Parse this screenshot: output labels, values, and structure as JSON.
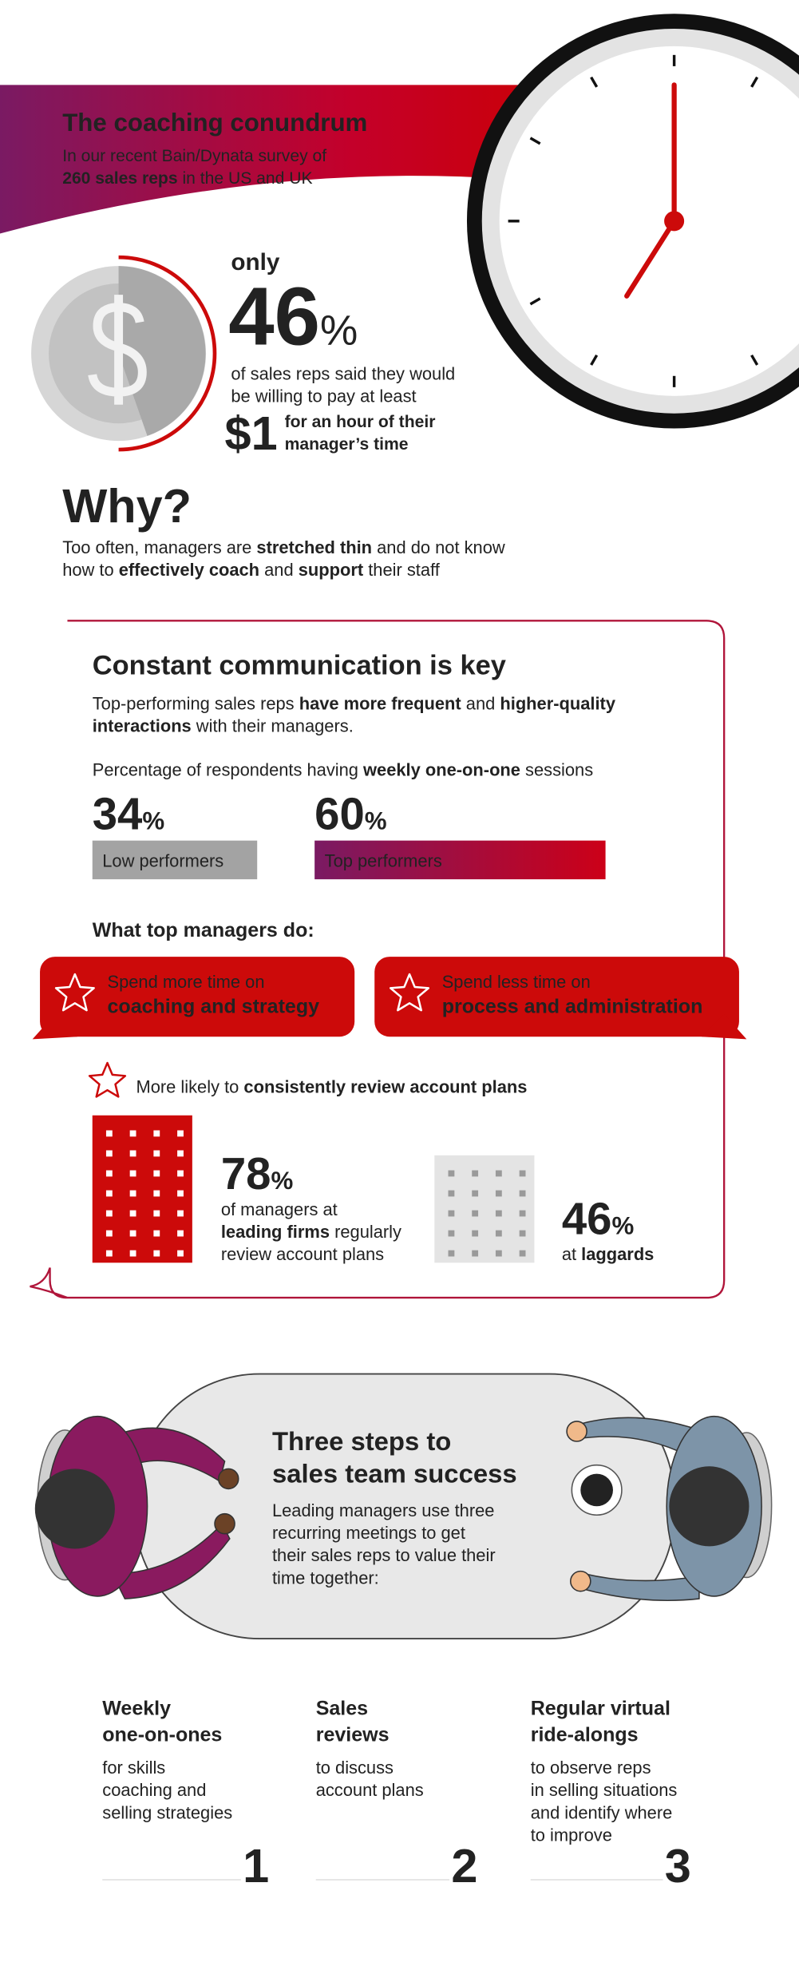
{
  "header": {
    "title": "The coaching conundrum",
    "subtitle": [
      "In our recent Bain/Dynata survey of",
      "260 sales reps",
      " in the US and UK"
    ]
  },
  "stat": {
    "lead": "only",
    "number": "46",
    "unit": "%",
    "text": [
      "of sales reps said they would",
      "be willing to pay at least"
    ],
    "amount": "$1",
    "amount_text": [
      "for an hour of their",
      "manager’s time"
    ]
  },
  "why": {
    "title": "Why?",
    "body": [
      "Too often, managers are ",
      "stretched thin",
      " and do not know",
      "how to ",
      "effectively coach",
      " and ",
      "support",
      " their staff"
    ]
  },
  "communication": {
    "title": "Constant communication is key",
    "intro": [
      "Top-performing sales reps ",
      "have more frequent",
      " and ",
      "higher-quality",
      "interactions",
      " with their managers."
    ],
    "question": [
      "Percentage of respondents having ",
      "weekly one-on-one",
      " sessions"
    ],
    "groups": [
      {
        "number": "34",
        "unit": "%",
        "label": "Low performers"
      },
      {
        "number": "60",
        "unit": "%",
        "label": "Top performers"
      }
    ]
  },
  "managers": {
    "title": "What top managers do:",
    "actions": [
      {
        "lead": "Spend more time on",
        "focus": "coaching and strategy"
      },
      {
        "lead": "Spend less time on",
        "focus": "process and administration"
      }
    ],
    "review": [
      "More likely to ",
      "consistently review account plans"
    ],
    "leading": {
      "number": "78",
      "unit": "%",
      "text": [
        "of managers at",
        "leading firms",
        " regularly",
        "review account plans"
      ]
    },
    "laggards": {
      "number": "46",
      "unit": "%",
      "text": [
        "at ",
        "laggards"
      ]
    }
  },
  "steps": {
    "title": [
      "Three steps to",
      "sales team success"
    ],
    "body": [
      "Leading managers use three",
      "recurring meetings to get",
      "their sales reps to value their",
      "time together:"
    ],
    "items": [
      {
        "title": [
          "Weekly",
          "one-on-ones"
        ],
        "body": [
          "for skills",
          "coaching and",
          "selling strategies"
        ],
        "number": "1"
      },
      {
        "title": [
          "Sales",
          "reviews"
        ],
        "body": [
          "to discuss",
          "account plans"
        ],
        "number": "2"
      },
      {
        "title": [
          "Regular virtual",
          "ride-alongs"
        ],
        "body": [
          "to observe reps",
          "in selling situations",
          "and identify where",
          "to improve"
        ],
        "number": "3"
      }
    ]
  }
}
